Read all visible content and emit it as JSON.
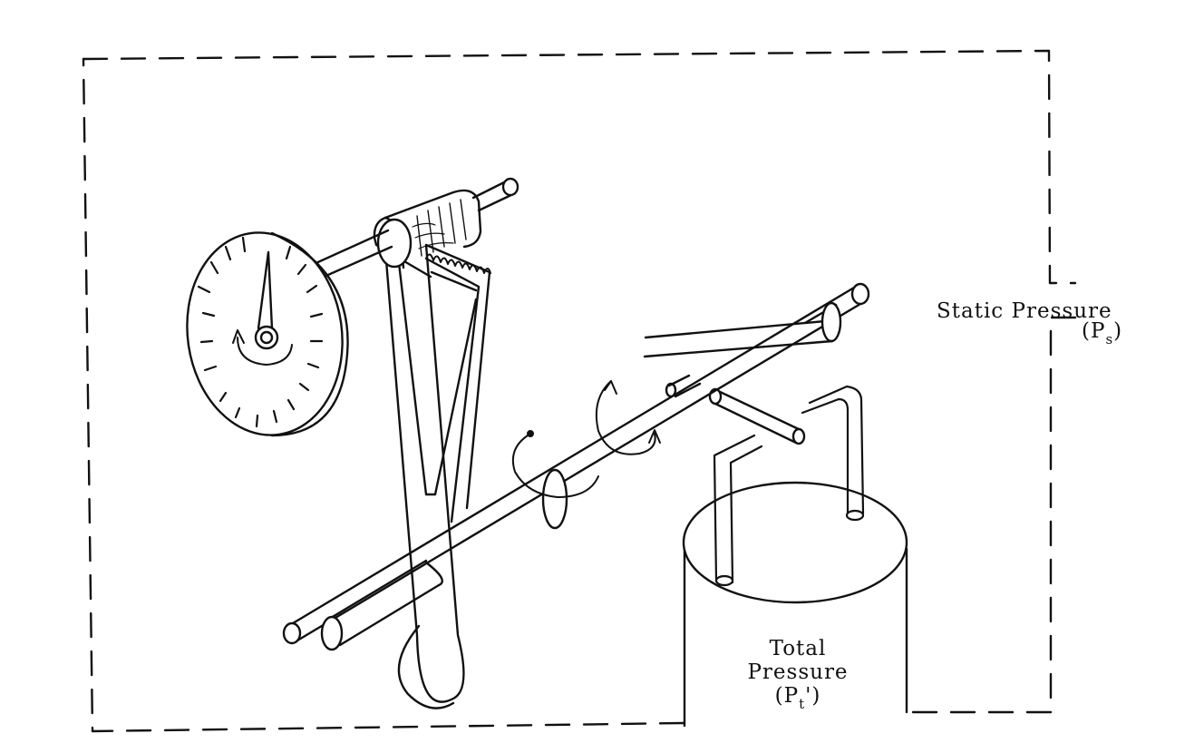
{
  "labels": {
    "static_pressure": "Static Pressure",
    "static_symbol_open": "(P",
    "static_symbol_sub": "s",
    "static_symbol_close": ")",
    "total_line1": "Total",
    "total_line2": "Pressure",
    "total_symbol_open": "(P",
    "total_symbol_sub": "t",
    "total_symbol_close": "')"
  }
}
